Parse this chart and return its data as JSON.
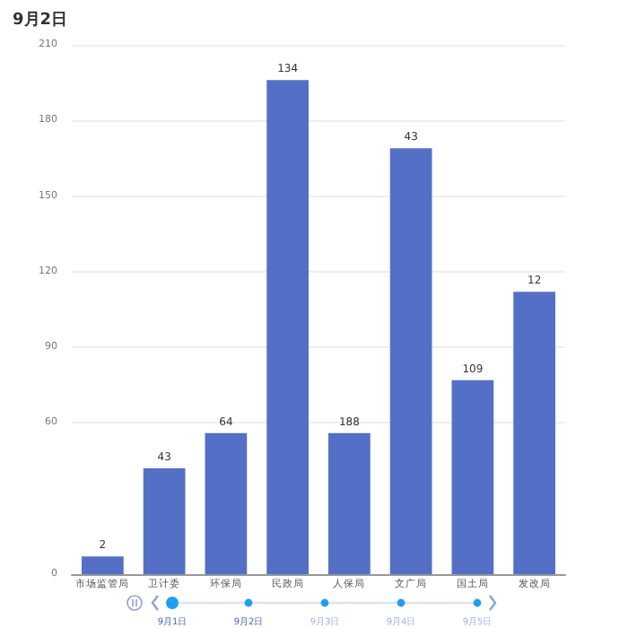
{
  "chart_data": {
    "type": "bar",
    "title": "9月2日",
    "categories": [
      "市场监管局",
      "卫计委",
      "环保局",
      "民政局",
      "人保局",
      "文广局",
      "国土局",
      "发改局"
    ],
    "values": [
      7,
      42,
      56,
      196,
      56,
      169,
      77,
      112
    ],
    "color": "#5470c6",
    "ylim": [
      0,
      210
    ],
    "yticks": [
      0,
      60,
      90,
      120,
      150,
      180,
      210
    ],
    "grid": "y",
    "annotations": [
      {
        "text": "2",
        "x": "市场监管局",
        "y": 7
      },
      {
        "text": "43",
        "x": "卫计委",
        "y": 42
      },
      {
        "text": "64",
        "x": "环保局",
        "y": 56
      },
      {
        "text": "134",
        "x": "民政局",
        "y": 196
      },
      {
        "text": "188",
        "x": "人保局",
        "y": 56
      },
      {
        "text": "43",
        "x": "文广局",
        "y": 169
      },
      {
        "text": "109",
        "x": "国土局",
        "y": 77
      },
      {
        "text": "12",
        "x": "发改局",
        "y": 112
      },
      "9月1日",
      "9月2日",
      "9月3日",
      "9月4日",
      "9月5日"
    ]
  }
}
